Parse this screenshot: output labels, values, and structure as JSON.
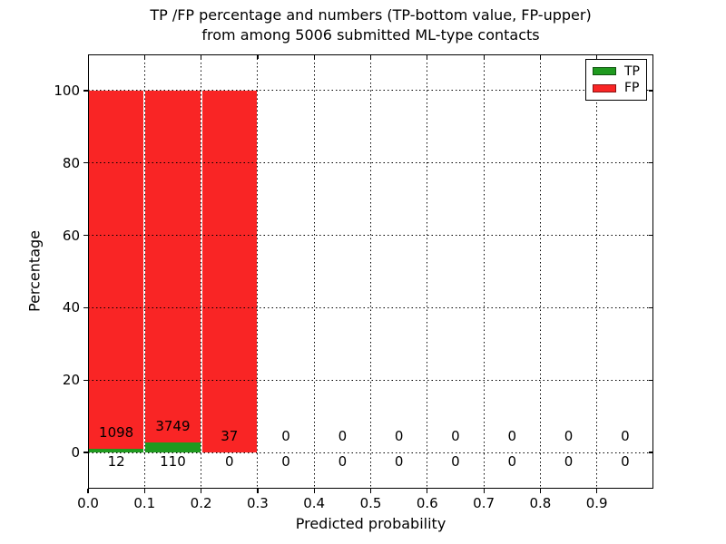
{
  "figure": {
    "title_line1": "TP /FP percentage and numbers (TP-bottom value, FP-upper)",
    "title_line2": "from among 5006 submitted ML-type contacts",
    "background": "#ffffff"
  },
  "colors": {
    "tp_green": "#1f9a1f",
    "fp_red": "#f92525",
    "axis": "#000000"
  },
  "chart_data": {
    "type": "bar",
    "stacked": true,
    "title": "TP /FP percentage and numbers (TP-bottom value, FP-upper) from among 5006 submitted ML-type contacts",
    "xlabel": "Predicted probability",
    "ylabel": "Percentage",
    "xlim": [
      0.0,
      1.0
    ],
    "ylim": [
      -10,
      110
    ],
    "xticks": [
      "0.0",
      "0.1",
      "0.2",
      "0.3",
      "0.4",
      "0.5",
      "0.6",
      "0.7",
      "0.8",
      "0.9"
    ],
    "xtick_values": [
      0.0,
      0.1,
      0.2,
      0.3,
      0.4,
      0.5,
      0.6,
      0.7,
      0.8,
      0.9
    ],
    "yticks": [
      "0",
      "20",
      "40",
      "60",
      "80",
      "100"
    ],
    "ytick_values": [
      0,
      20,
      40,
      60,
      80,
      100
    ],
    "grid": {
      "style": "dotted",
      "color": "#000000",
      "drawn_over_bars": true
    },
    "legend": {
      "position": "upper right",
      "entries": [
        {
          "label": "TP",
          "color": "#1f9a1f"
        },
        {
          "label": "FP",
          "color": "#f92525"
        }
      ]
    },
    "total_contacts": 5006,
    "bins": [
      {
        "x_range": [
          0.0,
          0.1
        ],
        "tp_count": 12,
        "fp_count": 1098,
        "tp_pct": 1.08,
        "fp_pct": 98.92
      },
      {
        "x_range": [
          0.1,
          0.2
        ],
        "tp_count": 110,
        "fp_count": 3749,
        "tp_pct": 2.85,
        "fp_pct": 97.15
      },
      {
        "x_range": [
          0.2,
          0.3
        ],
        "tp_count": 0,
        "fp_count": 37,
        "tp_pct": 0.0,
        "fp_pct": 100.0
      },
      {
        "x_range": [
          0.3,
          0.4
        ],
        "tp_count": 0,
        "fp_count": 0,
        "tp_pct": 0.0,
        "fp_pct": 0.0
      },
      {
        "x_range": [
          0.4,
          0.5
        ],
        "tp_count": 0,
        "fp_count": 0,
        "tp_pct": 0.0,
        "fp_pct": 0.0
      },
      {
        "x_range": [
          0.5,
          0.6
        ],
        "tp_count": 0,
        "fp_count": 0,
        "tp_pct": 0.0,
        "fp_pct": 0.0
      },
      {
        "x_range": [
          0.6,
          0.7
        ],
        "tp_count": 0,
        "fp_count": 0,
        "tp_pct": 0.0,
        "fp_pct": 0.0
      },
      {
        "x_range": [
          0.7,
          0.8
        ],
        "tp_count": 0,
        "fp_count": 0,
        "tp_pct": 0.0,
        "fp_pct": 0.0
      },
      {
        "x_range": [
          0.8,
          0.9
        ],
        "tp_count": 0,
        "fp_count": 0,
        "tp_pct": 0.0,
        "fp_pct": 0.0
      },
      {
        "x_range": [
          0.9,
          1.0
        ],
        "tp_count": 0,
        "fp_count": 0,
        "tp_pct": 0.0,
        "fp_pct": 0.0
      }
    ]
  }
}
